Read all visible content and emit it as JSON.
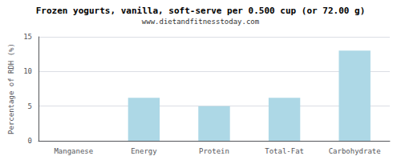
{
  "chart_data": {
    "type": "bar",
    "title": "Frozen yogurts, vanilla, soft-serve per 0.500 cup (or 72.00 g)",
    "subtitle": "www.dietandfitnesstoday.com",
    "categories": [
      "Manganese",
      "Energy",
      "Protein",
      "Total-Fat",
      "Carbohydrate"
    ],
    "values": [
      0,
      6.2,
      5.0,
      6.2,
      13.0
    ],
    "color": "#add8e6",
    "ylabel": "Percentage of RDH (%)",
    "ylim": [
      0,
      15
    ],
    "yticks": [
      0,
      5,
      10,
      15
    ],
    "grid": true
  }
}
